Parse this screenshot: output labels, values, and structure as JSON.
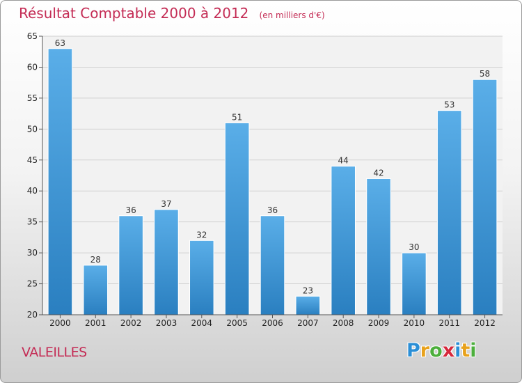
{
  "chart_data": {
    "type": "bar",
    "title": "Résultat Comptable 2000 à 2012",
    "unit_note": "(en milliers d'€)",
    "categories": [
      "2000",
      "2001",
      "2002",
      "2003",
      "2004",
      "2005",
      "2006",
      "2007",
      "2008",
      "2009",
      "2010",
      "2011",
      "2012"
    ],
    "values": [
      63,
      28,
      36,
      37,
      32,
      51,
      36,
      23,
      44,
      42,
      30,
      53,
      58
    ],
    "ylim": [
      20,
      65
    ],
    "yticks": [
      20,
      25,
      30,
      35,
      40,
      45,
      50,
      55,
      60,
      65
    ],
    "grid": true,
    "bar_color_top": "#5aaee8",
    "bar_color_bottom": "#2a7fc0"
  },
  "footer": {
    "commune": "VALEILLES",
    "logo_letters": [
      {
        "ch": "P",
        "color": "#2b8fd6"
      },
      {
        "ch": "r",
        "color": "#e8a21c"
      },
      {
        "ch": "o",
        "color": "#4caf3c"
      },
      {
        "ch": "x",
        "color": "#d6283c"
      },
      {
        "ch": "i",
        "color": "#2b8fd6"
      },
      {
        "ch": "t",
        "color": "#e8a21c"
      },
      {
        "ch": "i",
        "color": "#4caf3c"
      }
    ]
  }
}
